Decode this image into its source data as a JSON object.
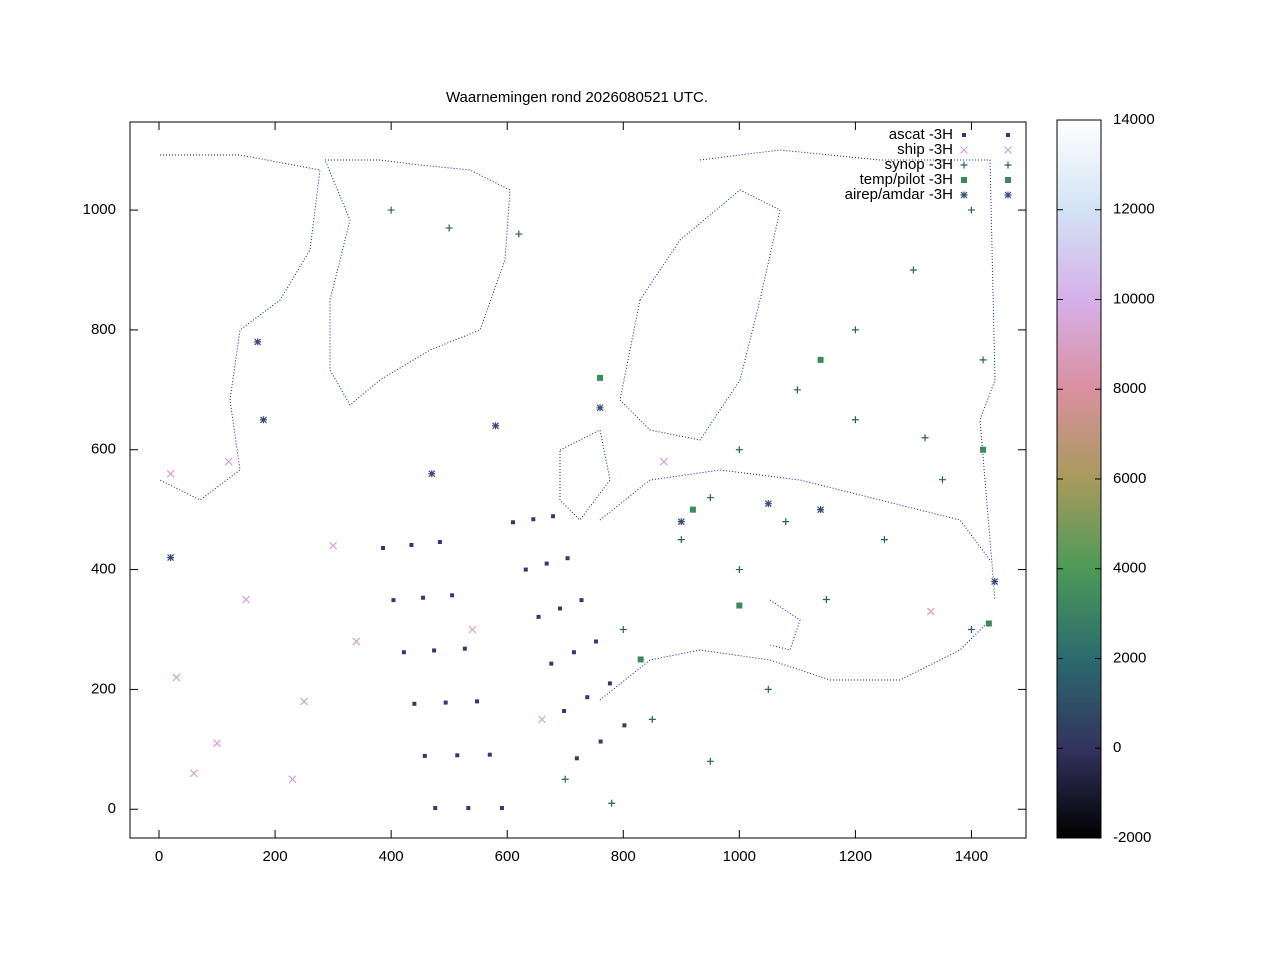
{
  "chart_data": {
    "type": "scatter",
    "title": "Waarnemingen rond 2026080521 UTC.",
    "xlim": [
      -50,
      1494
    ],
    "ylim": [
      -48,
      1147
    ],
    "xticks": [
      0,
      200,
      400,
      600,
      800,
      1000,
      1200,
      1400
    ],
    "yticks": [
      0,
      200,
      400,
      600,
      800,
      1000
    ],
    "cblim": [
      -2000,
      14000
    ],
    "cbticks": [
      -2000,
      0,
      2000,
      4000,
      6000,
      8000,
      10000,
      12000,
      14000
    ],
    "palette": [
      "#000000",
      "#33335f",
      "#2b6a6e",
      "#4c9a58",
      "#a89a5c",
      "#d9909f",
      "#d6b0ea",
      "#d3e3f5",
      "#ffffff"
    ],
    "legend": "top right",
    "series": [
      {
        "name": "ascat -3H",
        "marker": "dot",
        "color": "#35386a",
        "x": [
          386,
          404,
          422,
          440,
          458,
          476,
          435,
          455,
          474,
          494,
          514,
          533,
          484,
          505,
          527,
          548,
          570,
          591,
          610,
          632,
          654,
          676,
          698,
          720,
          645,
          668,
          691,
          715,
          738,
          761,
          679,
          704,
          728,
          753,
          777,
          802
        ],
        "values": [
          436,
          349,
          262,
          176,
          89,
          2,
          441,
          353,
          265,
          178,
          90,
          2,
          446,
          357,
          268,
          180,
          91,
          2,
          479,
          400,
          321,
          243,
          164,
          85,
          484,
          410,
          335,
          262,
          187,
          113,
          489,
          419,
          349,
          280,
          210,
          140
        ]
      },
      {
        "name": "ship -3H",
        "marker": "cross",
        "color": "#d2a0d8",
        "x": [
          30,
          100,
          150,
          250,
          300,
          20,
          120,
          340,
          540,
          660,
          870,
          1330,
          60,
          230
        ],
        "values": [
          220,
          110,
          350,
          180,
          440,
          560,
          580,
          280,
          300,
          150,
          580,
          330,
          60,
          50
        ]
      },
      {
        "name": "synop -3H",
        "marker": "plus",
        "color": "#2b5e6a",
        "x": [
          800,
          900,
          950,
          1000,
          1100,
          1200,
          1300,
          1400,
          850,
          950,
          1050,
          1150,
          1250,
          1350,
          1420,
          700,
          780,
          1000,
          1080,
          1200,
          1320,
          1400,
          500,
          400,
          620
        ],
        "values": [
          300,
          450,
          520,
          600,
          700,
          800,
          900,
          1000,
          150,
          80,
          200,
          350,
          450,
          550,
          750,
          50,
          10,
          400,
          480,
          650,
          620,
          300,
          970,
          1000,
          960
        ]
      },
      {
        "name": "temp/pilot -3H",
        "marker": "square",
        "color": "#3c8a5c",
        "x": [
          1420,
          1140,
          920,
          1000,
          1430,
          830,
          760
        ],
        "values": [
          600,
          750,
          500,
          340,
          310,
          250,
          720
        ]
      },
      {
        "name": "airep/amdar -3H",
        "marker": "star",
        "color": "#3a4a78",
        "x": [
          20,
          180,
          580,
          1050,
          1140,
          900,
          760,
          470,
          170,
          1440
        ],
        "values": [
          420,
          650,
          640,
          510,
          500,
          480,
          670,
          560,
          780,
          380
        ]
      }
    ]
  }
}
